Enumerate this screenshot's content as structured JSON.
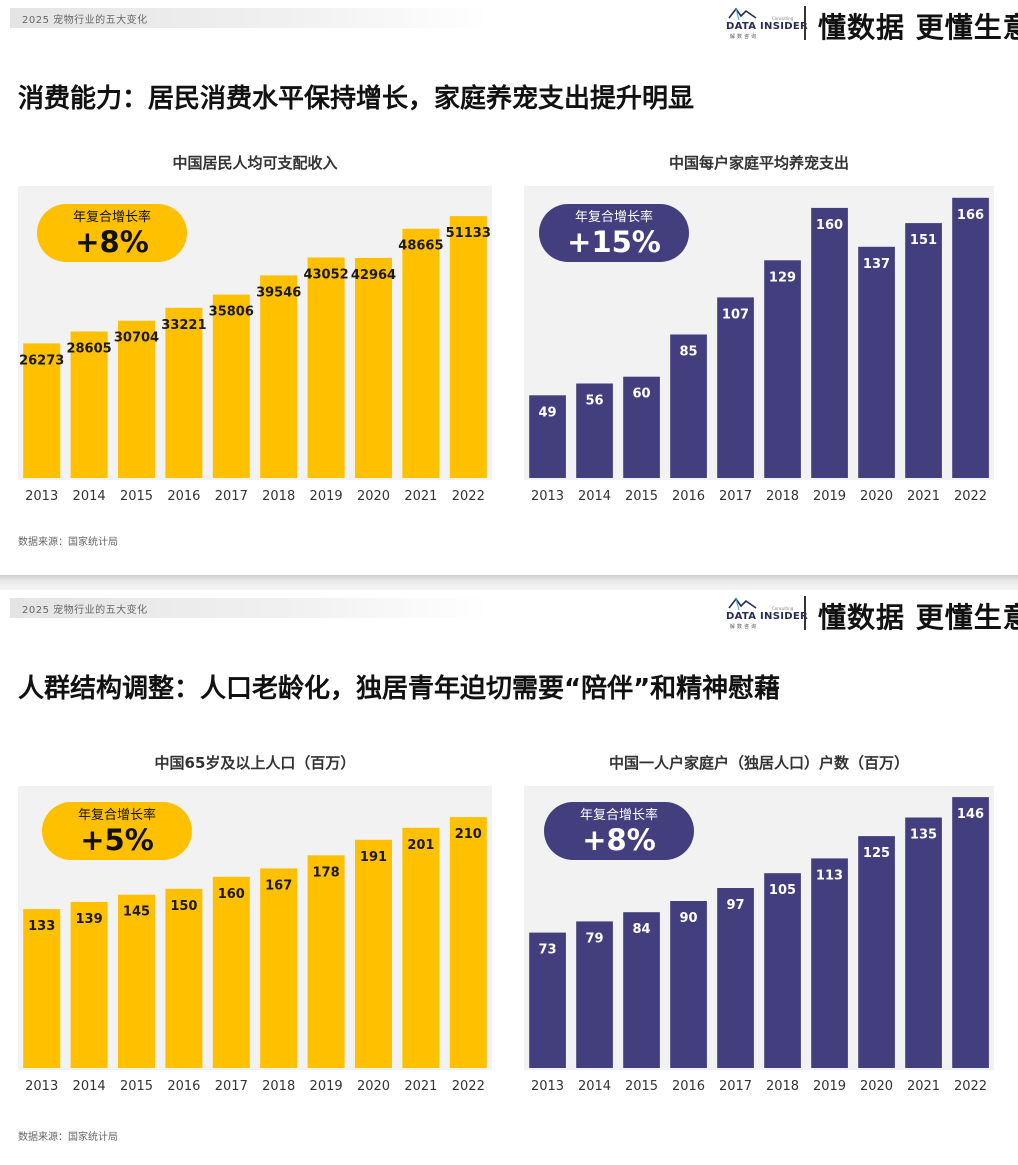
{
  "slides": [
    {
      "topbar": "2025 宠物行业的五大变化",
      "logo": {
        "text": "DATA INSIDER",
        "sub": "解数咨询",
        "tiny": "Consulting"
      },
      "slogan": "懂数据 更懂生意",
      "headline": "消费能力：居民消费水平保持增长，家庭养宠支出提升明显",
      "source": "数据来源：国家统计局",
      "charts": [
        {
          "title": "中国居民人均可支配收入",
          "cagr_label": "年复合增长率",
          "cagr_value": "+8%",
          "color": "#FFC000",
          "label_color": "#1a1a1a"
        },
        {
          "title": "中国每户家庭平均养宠支出",
          "cagr_label": "年复合增长率",
          "cagr_value": "+15%",
          "color": "#433F7E",
          "label_color": "#ffffff"
        }
      ]
    },
    {
      "topbar": "2025 宠物行业的五大变化",
      "logo": {
        "text": "DATA INSIDER",
        "sub": "解数咨询",
        "tiny": "Consulting"
      },
      "slogan": "懂数据 更懂生意",
      "headline": "人群结构调整：人口老龄化，独居青年迫切需要“陪伴”和精神慰藉",
      "source": "数据来源：国家统计局",
      "charts": [
        {
          "title": "中国65岁及以上人口（百万）",
          "cagr_label": "年复合增长率",
          "cagr_value": "+5%",
          "color": "#FFC000",
          "label_color": "#1a1a1a"
        },
        {
          "title": "中国一人户家庭户（独居人口）户数（百万）",
          "cagr_label": "年复合增长率",
          "cagr_value": "+8%",
          "color": "#433F7E",
          "label_color": "#ffffff"
        }
      ]
    }
  ],
  "chart_data": [
    {
      "type": "bar",
      "title": "中国居民人均可支配收入",
      "categories": [
        "2013",
        "2014",
        "2015",
        "2016",
        "2017",
        "2018",
        "2019",
        "2020",
        "2021",
        "2022"
      ],
      "values": [
        26273,
        28605,
        30704,
        33221,
        35806,
        39546,
        43052,
        42964,
        48665,
        51133
      ],
      "ylim": [
        0,
        57000
      ],
      "grid": false,
      "legend": "none"
    },
    {
      "type": "bar",
      "title": "中国每户家庭平均养宠支出",
      "categories": [
        "2013",
        "2014",
        "2015",
        "2016",
        "2017",
        "2018",
        "2019",
        "2020",
        "2021",
        "2022"
      ],
      "values": [
        49,
        56,
        60,
        85,
        107,
        129,
        160,
        137,
        151,
        166
      ],
      "ylim": [
        0,
        173
      ],
      "grid": false,
      "legend": "none"
    },
    {
      "type": "bar",
      "title": "中国65岁及以上人口（百万）",
      "categories": [
        "2013",
        "2014",
        "2015",
        "2016",
        "2017",
        "2018",
        "2019",
        "2020",
        "2021",
        "2022"
      ],
      "values": [
        133,
        139,
        145,
        150,
        160,
        167,
        178,
        191,
        201,
        210
      ],
      "ylim": [
        0,
        236
      ],
      "grid": false,
      "legend": "none"
    },
    {
      "type": "bar",
      "title": "中国一人户家庭户（独居人口）户数（百万）",
      "categories": [
        "2013",
        "2014",
        "2015",
        "2016",
        "2017",
        "2018",
        "2019",
        "2020",
        "2021",
        "2022"
      ],
      "values": [
        73,
        79,
        84,
        90,
        97,
        105,
        113,
        125,
        135,
        146
      ],
      "ylim": [
        0,
        152
      ],
      "grid": false,
      "legend": "none"
    }
  ]
}
